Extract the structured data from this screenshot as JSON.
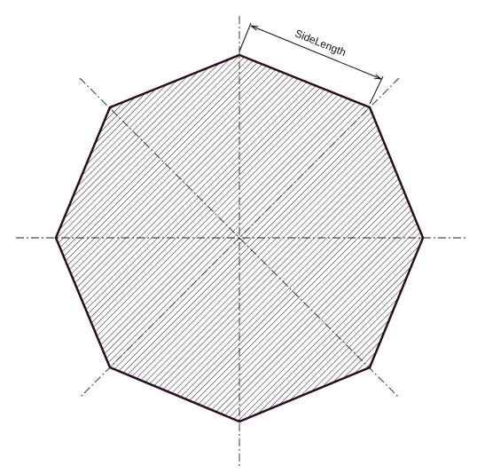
{
  "diagram": {
    "shape": "regular-octagon",
    "dimension_label": "SideLength",
    "colors": {
      "background": "#ffffff",
      "outline": "#2a0b24",
      "hatch": "#1a1a1a",
      "centerline": "#222222",
      "dimension": "#111111"
    }
  }
}
